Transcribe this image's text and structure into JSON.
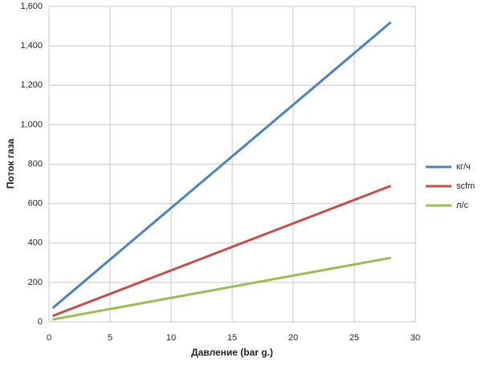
{
  "chart_data": {
    "type": "line",
    "x_label": "Давление (bar g.)",
    "y_label": "Поток газа",
    "x": [
      0.3,
      28
    ],
    "series": [
      {
        "name": "кг/ч",
        "color": "#4f81bd",
        "values": [
          70,
          1520
        ]
      },
      {
        "name": "scfm",
        "color": "#c0504d",
        "values": [
          30,
          690
        ]
      },
      {
        "name": "л/с",
        "color": "#9bbb59",
        "values": [
          12,
          325
        ]
      }
    ],
    "xlim": [
      0,
      30
    ],
    "xticks": [
      0,
      5,
      10,
      15,
      20,
      25,
      30
    ],
    "ylim": [
      0,
      1600
    ],
    "yticks": [
      0,
      200,
      400,
      600,
      800,
      {
        "value": 1000,
        "label": "1,000"
      },
      {
        "value": 1200,
        "label": "1,200"
      },
      {
        "value": 1400,
        "label": "1,400"
      },
      {
        "value": 1600,
        "label": "1,600"
      }
    ],
    "grid": true,
    "legend": "right"
  }
}
